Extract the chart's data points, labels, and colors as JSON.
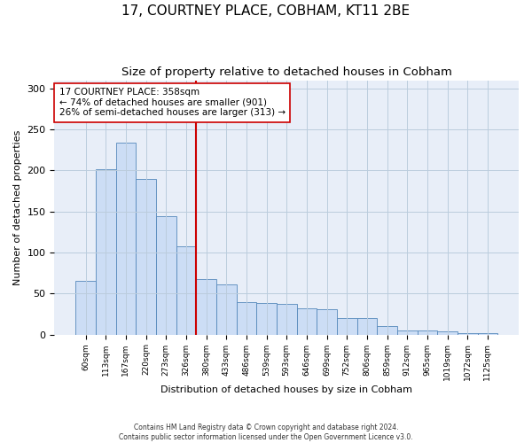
{
  "title": "17, COURTNEY PLACE, COBHAM, KT11 2BE",
  "subtitle": "Size of property relative to detached houses in Cobham",
  "xlabel": "Distribution of detached houses by size in Cobham",
  "ylabel": "Number of detached properties",
  "footnote1": "Contains HM Land Registry data © Crown copyright and database right 2024.",
  "footnote2": "Contains public sector information licensed under the Open Government Licence v3.0.",
  "bar_categories": [
    "60sqm",
    "113sqm",
    "167sqm",
    "220sqm",
    "273sqm",
    "326sqm",
    "380sqm",
    "433sqm",
    "486sqm",
    "539sqm",
    "593sqm",
    "646sqm",
    "699sqm",
    "752sqm",
    "806sqm",
    "859sqm",
    "912sqm",
    "965sqm",
    "1019sqm",
    "1072sqm",
    "1125sqm"
  ],
  "bar_values": [
    65,
    201,
    234,
    190,
    144,
    108,
    68,
    61,
    40,
    38,
    37,
    32,
    31,
    20,
    20,
    10,
    5,
    5,
    4,
    2,
    2
  ],
  "bar_color": "#ccddf5",
  "bar_edge_color": "#5588bb",
  "annotation_box_text": "17 COURTNEY PLACE: 358sqm\n← 74% of detached houses are smaller (901)\n26% of semi-detached houses are larger (313) →",
  "vline_x": 5.5,
  "vline_color": "#cc0000",
  "annotation_box_color": "#ffffff",
  "annotation_box_edge_color": "#cc0000",
  "ylim": [
    0,
    310
  ],
  "yticks": [
    0,
    50,
    100,
    150,
    200,
    250,
    300
  ],
  "grid_color": "#bbccdd",
  "background_color": "#ffffff",
  "plot_bg_color": "#e8eef8"
}
